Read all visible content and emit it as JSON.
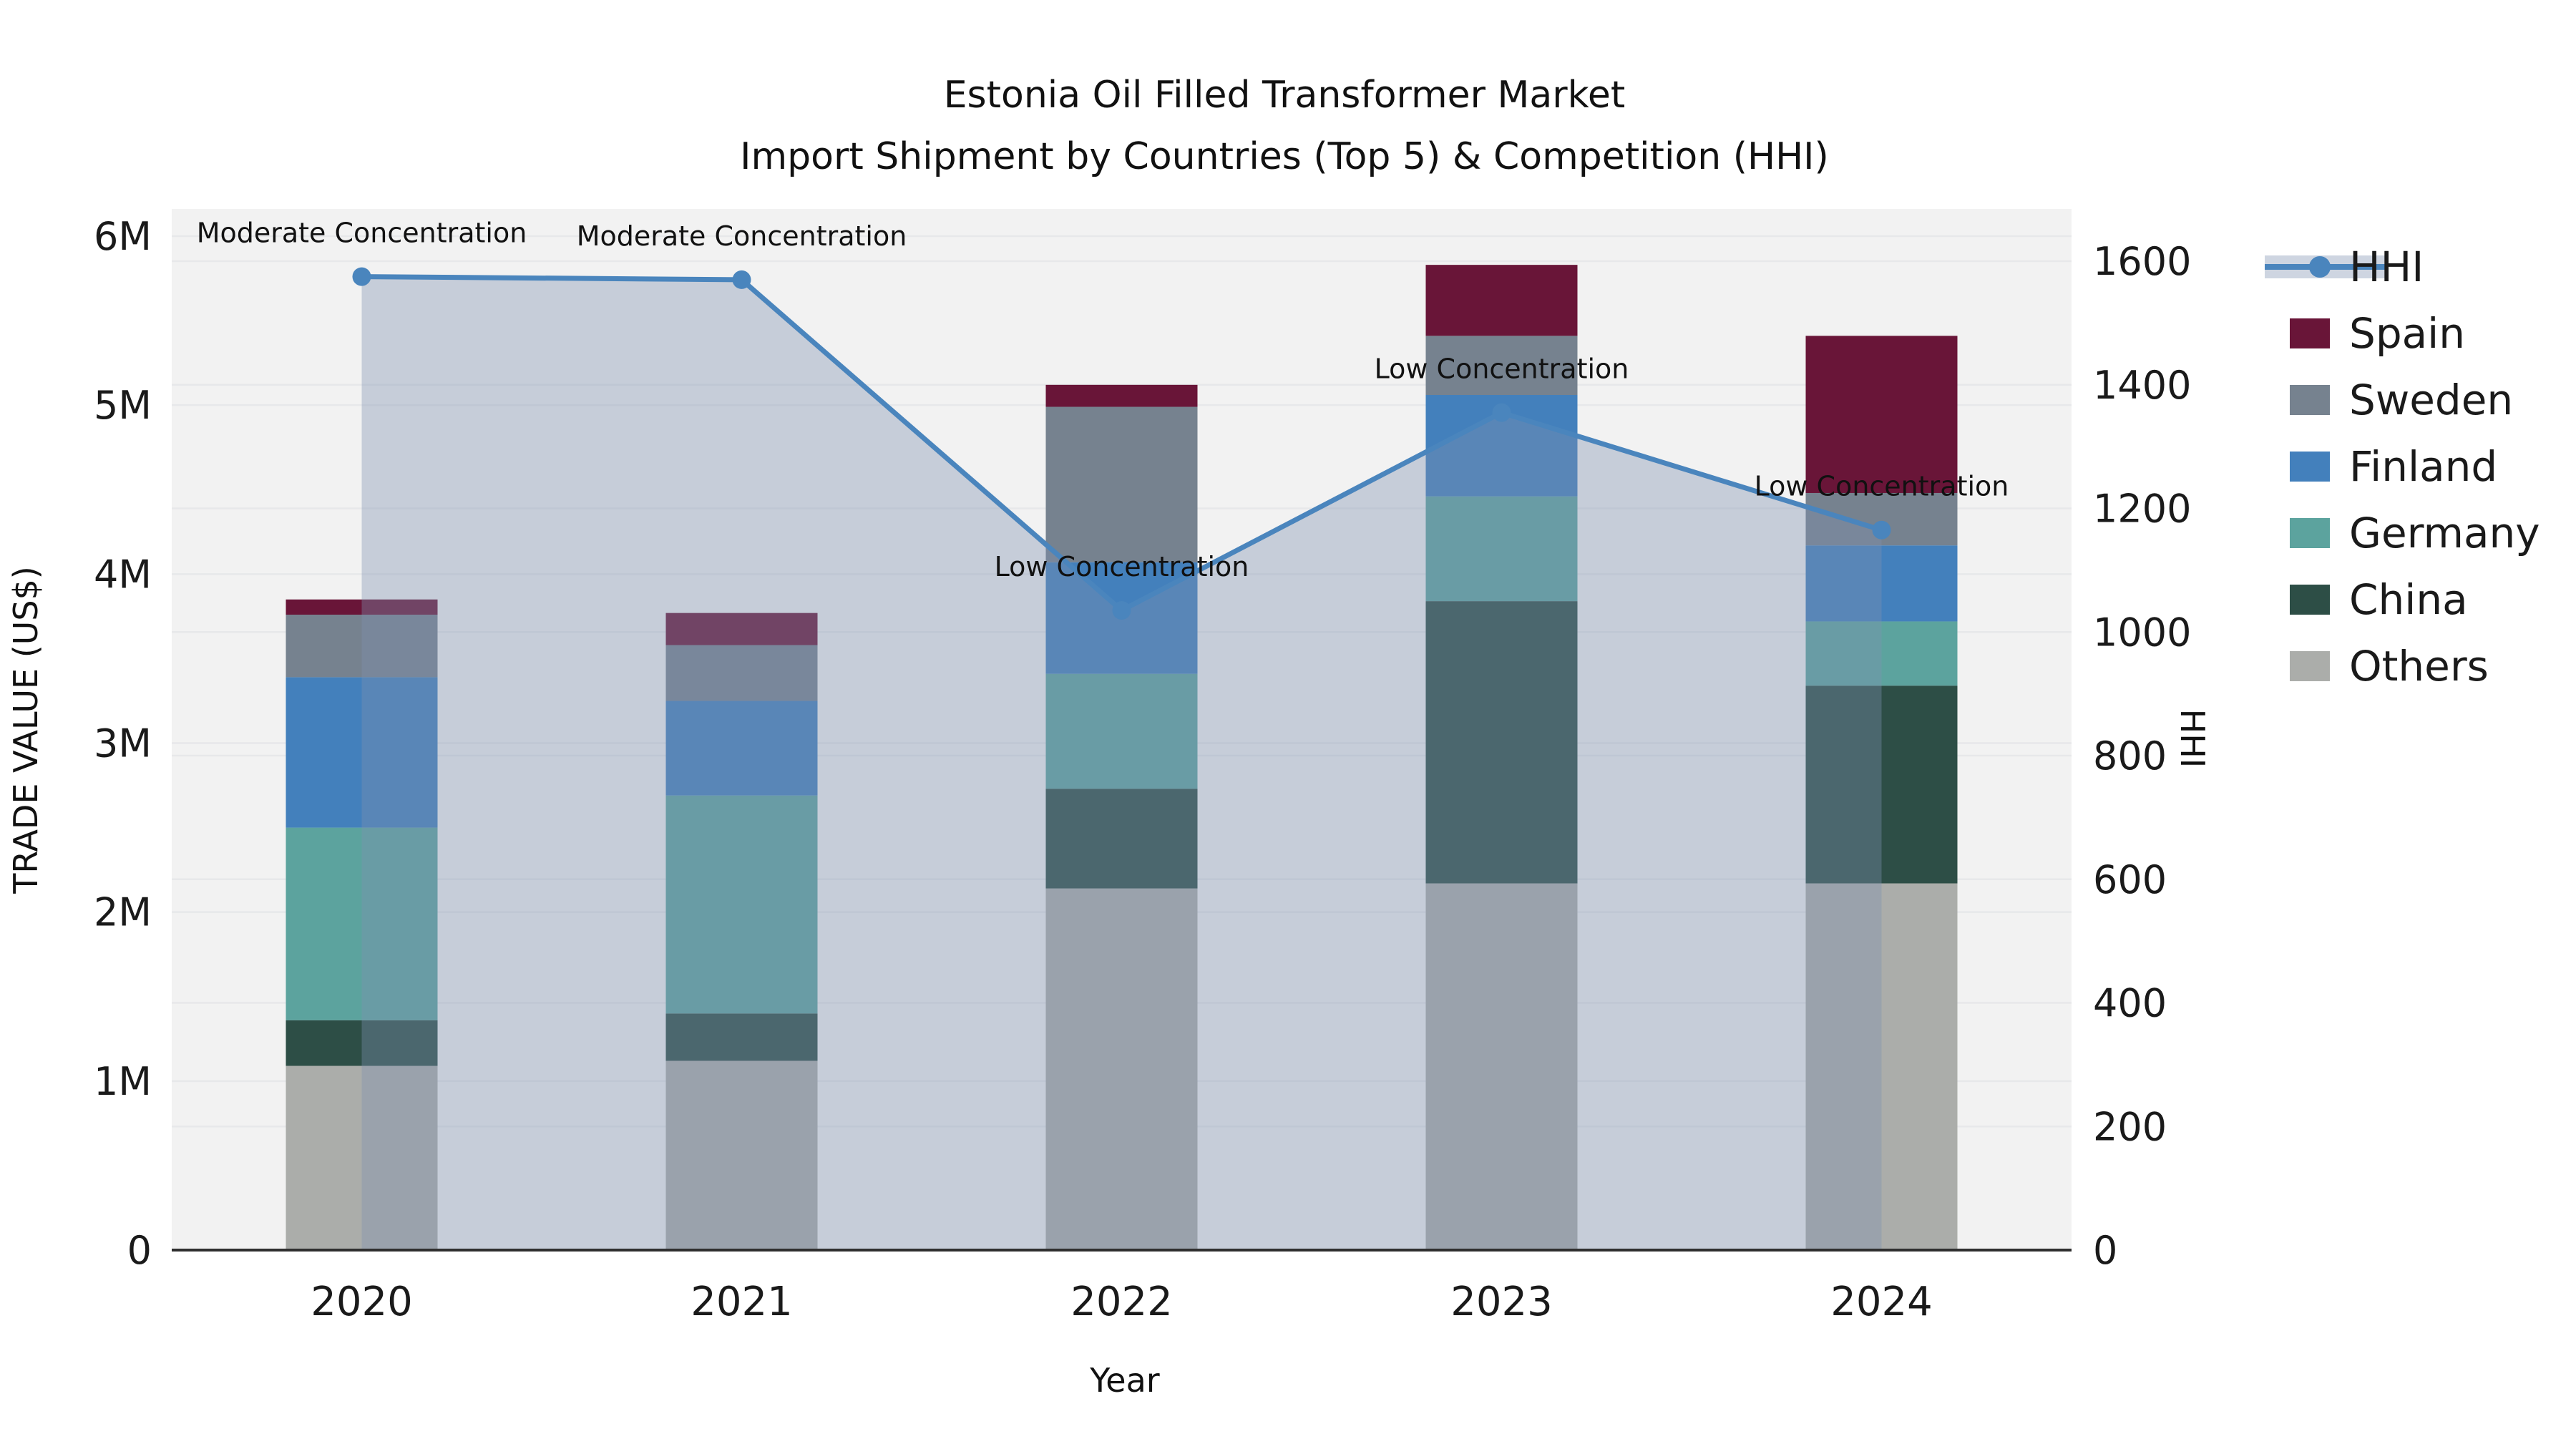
{
  "figure": {
    "title_line1": "Estonia Oil Filled Transformer Market",
    "title_line2": "Import Shipment by Countries (Top 5) & Competition (HHI)",
    "x_axis_label": "Year",
    "y_left_axis_label": "TRADE VALUE (US$)",
    "y_right_axis_label": "HHI"
  },
  "chart_data": {
    "type": "bar",
    "subtype": "stacked-bars-with-line-overlay",
    "title": "Estonia Oil Filled Transformer Market — Import Shipment by Countries (Top 5) & Competition (HHI)",
    "xlabel": "Year",
    "ylabel_left": "TRADE VALUE (US$)",
    "ylabel_right": "HHI",
    "categories": [
      "2020",
      "2021",
      "2022",
      "2023",
      "2024"
    ],
    "value_units": "millions USD",
    "stack_order_bottom_to_top": [
      "Others",
      "China",
      "Germany",
      "Finland",
      "Sweden",
      "Spain"
    ],
    "series": [
      {
        "name": "Spain",
        "color": "#691538",
        "values": [
          0.09,
          0.19,
          0.13,
          0.42,
          0.93
        ]
      },
      {
        "name": "Sweden",
        "color": "#76828f",
        "values": [
          0.37,
          0.33,
          0.92,
          0.35,
          0.31
        ]
      },
      {
        "name": "Finland",
        "color": "#4380bc",
        "values": [
          0.89,
          0.56,
          0.66,
          0.6,
          0.45
        ]
      },
      {
        "name": "Germany",
        "color": "#5ca39e",
        "values": [
          1.14,
          1.29,
          0.68,
          0.62,
          0.38
        ]
      },
      {
        "name": "China",
        "color": "#2d4e46",
        "values": [
          0.27,
          0.28,
          0.59,
          1.67,
          1.17
        ]
      },
      {
        "name": "Others",
        "color": "#abadaa",
        "values": [
          1.09,
          1.12,
          2.14,
          2.17,
          2.17
        ]
      }
    ],
    "bar_totals_millions": [
      3.85,
      3.77,
      5.12,
      5.83,
      5.41
    ],
    "hhi_line": {
      "name": "HHI",
      "color": "#4a85bd",
      "area_fill": "rgba(125,145,175,0.38)",
      "values": [
        1575,
        1570,
        1035,
        1355,
        1165
      ]
    },
    "annotations": [
      {
        "year": "2020",
        "text": "Moderate Concentration"
      },
      {
        "year": "2021",
        "text": "Moderate Concentration"
      },
      {
        "year": "2022",
        "text": "Low Concentration"
      },
      {
        "year": "2023",
        "text": "Low Concentration"
      },
      {
        "year": "2024",
        "text": "Low Concentration"
      }
    ],
    "y_left_axis": {
      "ticks": [
        "0",
        "1M",
        "2M",
        "3M",
        "4M",
        "5M",
        "6M"
      ],
      "tick_values": [
        0,
        1,
        2,
        3,
        4,
        5,
        6
      ],
      "max": 6
    },
    "y_right_axis": {
      "ticks": [
        "0",
        "200",
        "400",
        "600",
        "800",
        "1000",
        "1200",
        "1400",
        "1600"
      ],
      "tick_values": [
        0,
        200,
        400,
        600,
        800,
        1000,
        1200,
        1400,
        1600
      ],
      "max": 1600
    },
    "legend_order": [
      "HHI",
      "Spain",
      "Sweden",
      "Finland",
      "Germany",
      "China",
      "Others"
    ],
    "grid": "horizontal gridlines for both axes",
    "legend_position": "right-outside",
    "plot_background": "#f2f2f2",
    "gridline_color": "#e7e8ea",
    "axis_line_color": "#2f2f2f"
  }
}
